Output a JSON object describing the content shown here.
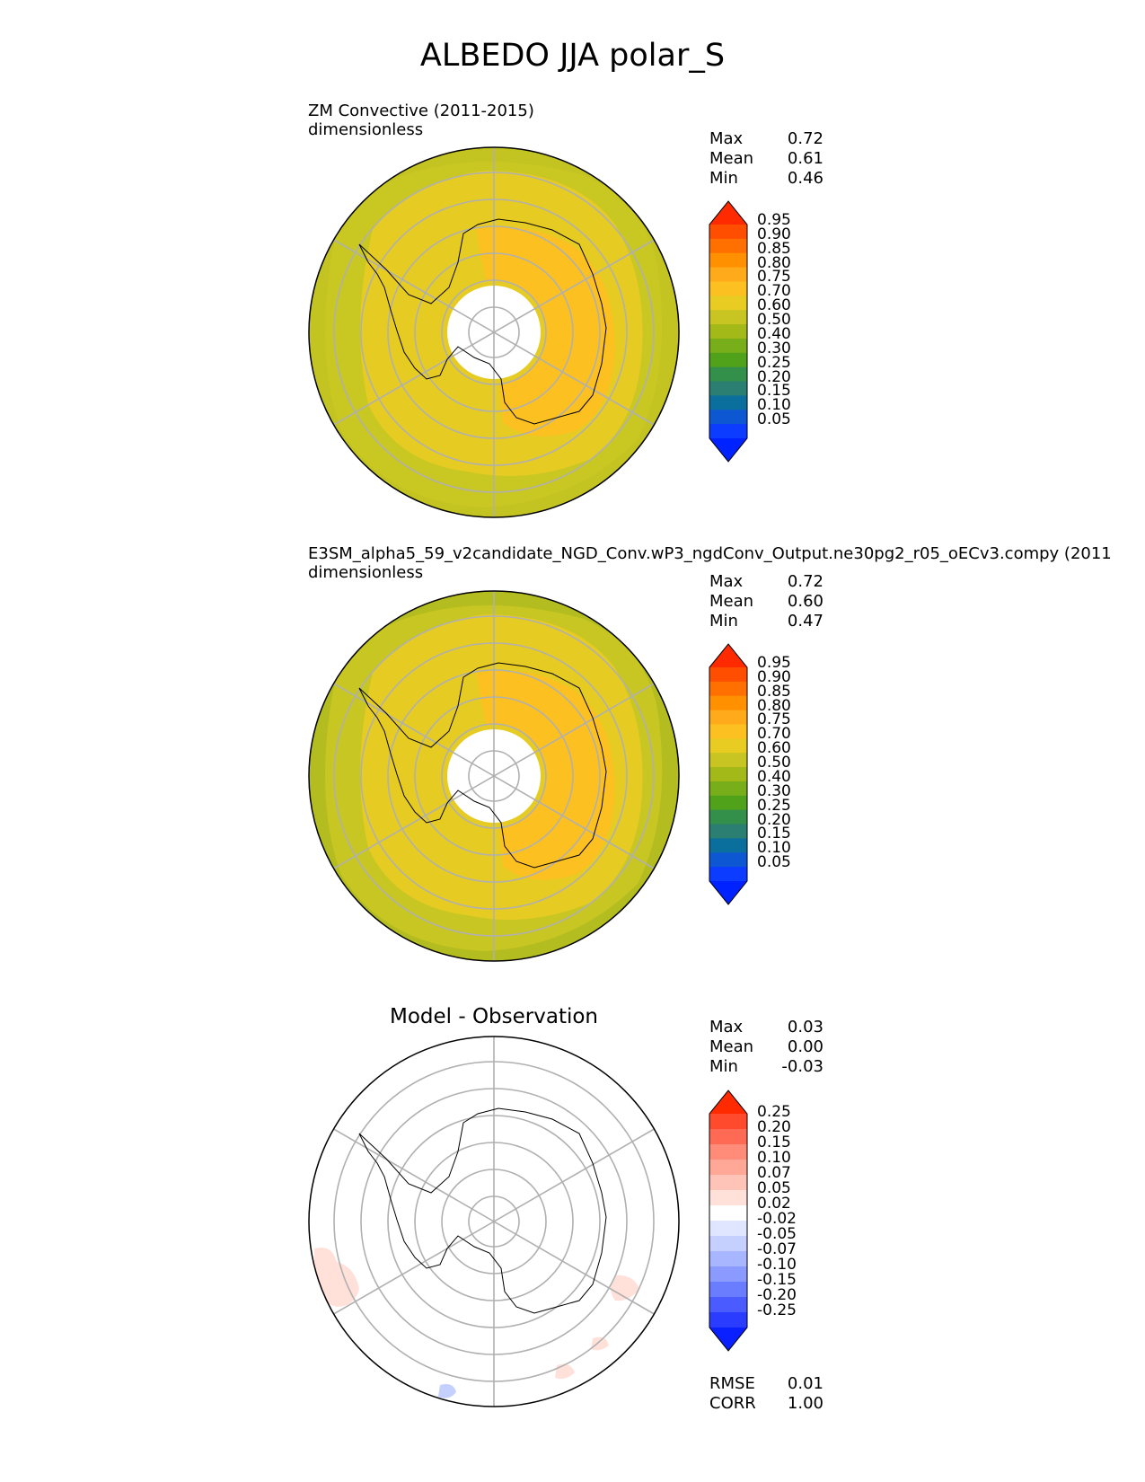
{
  "title": "ALBEDO JJA polar_S",
  "chart_data": [
    {
      "type": "heatmap",
      "projection": "south-polar-stereographic",
      "title": "ZM Convective (2011-2015)",
      "units": "dimensionless",
      "stats": {
        "max": "0.72",
        "mean": "0.61",
        "min": "0.46"
      },
      "colorbar_ticks": [
        "0.95",
        "0.90",
        "0.85",
        "0.80",
        "0.75",
        "0.70",
        "0.60",
        "0.50",
        "0.40",
        "0.30",
        "0.25",
        "0.20",
        "0.15",
        "0.10",
        "0.05"
      ],
      "colorbar_colors": [
        "#ff2a00",
        "#ff4e00",
        "#ff7000",
        "#ff9100",
        "#ffaa1a",
        "#fcc020",
        "#e8cc22",
        "#c8c421",
        "#a2b917",
        "#78ae1a",
        "#4fa21a",
        "#33904a",
        "#2a7f72",
        "#0a6f9c",
        "#0d57d2",
        "#0b3cff",
        "#0022ff"
      ],
      "zone_values": [
        0.47,
        0.52,
        0.57,
        0.64,
        0.71
      ],
      "grid": true
    },
    {
      "type": "heatmap",
      "projection": "south-polar-stereographic",
      "title": "E3SM_alpha5_59_v2candidate_NGD_Conv.wP3_ngdConv_Output.ne30pg2_r05_oECv3.compy (2011",
      "units": "dimensionless",
      "stats": {
        "max": "0.72",
        "mean": "0.60",
        "min": "0.47"
      },
      "colorbar_ticks": [
        "0.95",
        "0.90",
        "0.85",
        "0.80",
        "0.75",
        "0.70",
        "0.60",
        "0.50",
        "0.40",
        "0.30",
        "0.25",
        "0.20",
        "0.15",
        "0.10",
        "0.05"
      ],
      "colorbar_colors": [
        "#ff2a00",
        "#ff4e00",
        "#ff7000",
        "#ff9100",
        "#ffaa1a",
        "#fcc020",
        "#e8cc22",
        "#c8c421",
        "#a2b917",
        "#78ae1a",
        "#4fa21a",
        "#33904a",
        "#2a7f72",
        "#0a6f9c",
        "#0d57d2",
        "#0b3cff",
        "#0022ff"
      ],
      "zone_values": [
        0.47,
        0.52,
        0.57,
        0.63,
        0.71
      ],
      "grid": true
    },
    {
      "type": "heatmap",
      "projection": "south-polar-stereographic",
      "title": "Model - Observation",
      "stats": {
        "max": "0.03",
        "mean": "0.00",
        "min": "-0.03"
      },
      "metrics": {
        "rmse": "0.01",
        "corr": "1.00"
      },
      "colorbar_ticks": [
        "0.25",
        "0.20",
        "0.15",
        "0.10",
        "0.07",
        "0.05",
        "0.02",
        "-0.02",
        "-0.05",
        "-0.07",
        "-0.10",
        "-0.15",
        "-0.20",
        "-0.25"
      ],
      "colorbar_colors": [
        "#ff2a00",
        "#ff4a2e",
        "#ff6a55",
        "#ff8c78",
        "#ffa898",
        "#ffc4b8",
        "#ffe1da",
        "#ffffff",
        "#e0e6ff",
        "#c6d0ff",
        "#a8b6ff",
        "#8a9aff",
        "#6a7cff",
        "#4a5cff",
        "#2a3cff",
        "#0b20ff"
      ],
      "grid": true
    }
  ],
  "labels": {
    "max": "Max",
    "mean": "Mean",
    "min": "Min",
    "rmse": "RMSE",
    "corr": "CORR"
  }
}
